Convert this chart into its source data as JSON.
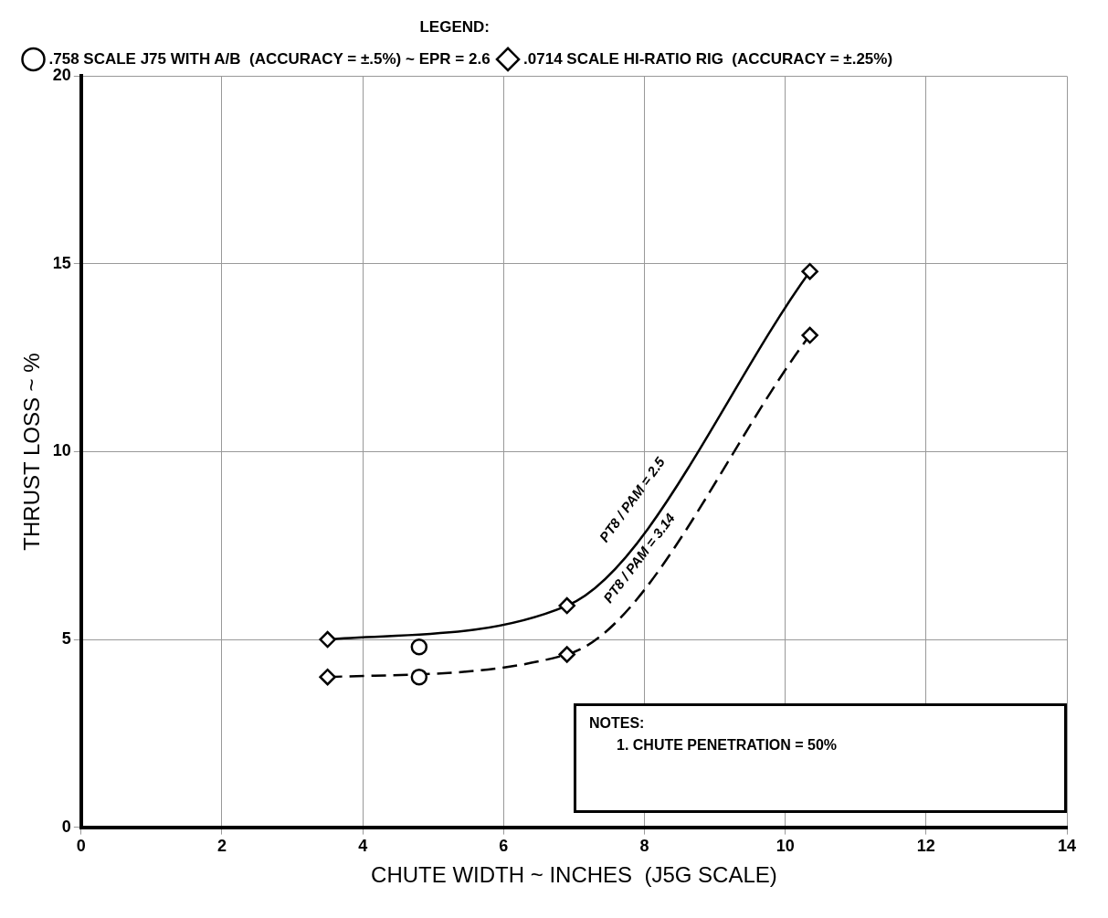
{
  "chart_data": {
    "type": "line",
    "xlabel": "CHUTE WIDTH ~ INCHES  (J5G SCALE)",
    "ylabel": "THRUST LOSS ~ %",
    "legend_title": "LEGEND:",
    "legend": "top",
    "grid": true,
    "xlim": [
      0,
      14
    ],
    "xticks": [
      0,
      2,
      4,
      6,
      8,
      10,
      12,
      14
    ],
    "ylim": [
      0,
      20
    ],
    "yticks": [
      0,
      5,
      10,
      15,
      20
    ],
    "series": [
      {
        "name": ".758 SCALE J75 WITH A/B  (ACCURACY = ±.5%) ~ EPR = 2.6",
        "type": "scatter",
        "marker": "circle",
        "color": "#000000",
        "x": [
          4.8,
          4.8
        ],
        "values": [
          4.8,
          4.0
        ]
      },
      {
        "name": ".0714 SCALE HI-RATIO RIG  (ACCURACY = ±.25%)",
        "marker": "diamond",
        "line_style": "solid",
        "color": "#000000",
        "x": [
          3.5,
          6.9,
          10.35
        ],
        "values": [
          5.0,
          5.9,
          14.8
        ]
      },
      {
        "marker": "diamond",
        "line_style": "dashed",
        "color": "#000000",
        "x": [
          3.5,
          6.9,
          10.35
        ],
        "values": [
          4.0,
          4.6,
          13.1
        ]
      }
    ],
    "annotations": [
      "PT8 / PAM = 2.5",
      "PT8 / PAM = 3.14",
      "NOTES:",
      "1. CHUTE PENETRATION = 50%"
    ]
  }
}
